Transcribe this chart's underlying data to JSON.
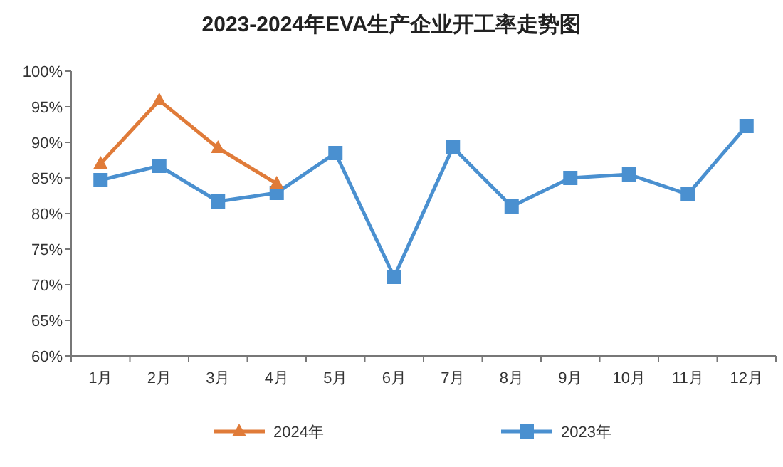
{
  "chart_data": {
    "type": "line",
    "title": "2023-2024年EVA生产企业开工率走势图",
    "categories": [
      "1月",
      "2月",
      "3月",
      "4月",
      "5月",
      "6月",
      "7月",
      "8月",
      "9月",
      "10月",
      "11月",
      "12月"
    ],
    "ylim": [
      60,
      100
    ],
    "yticks": [
      {
        "value": 60,
        "label": "60%"
      },
      {
        "value": 65,
        "label": "65%"
      },
      {
        "value": 70,
        "label": "70%"
      },
      {
        "value": 75,
        "label": "75%"
      },
      {
        "value": 80,
        "label": "80%"
      },
      {
        "value": 85,
        "label": "85%"
      },
      {
        "value": 90,
        "label": "90%"
      },
      {
        "value": 95,
        "label": "95%"
      },
      {
        "value": 100,
        "label": "100%"
      }
    ],
    "grid": false,
    "legend": "bottom",
    "line_style": "solid",
    "series": [
      {
        "name": "2024年",
        "color": "#e07b39",
        "marker": "triangle",
        "values": [
          87,
          95.9,
          89.2,
          84.2,
          null,
          null,
          null,
          null,
          null,
          null,
          null,
          null
        ]
      },
      {
        "name": "2023年",
        "color": "#4a90d0",
        "marker": "square",
        "values": [
          84.7,
          86.7,
          81.7,
          82.9,
          88.5,
          71.1,
          89.3,
          81,
          85,
          85.5,
          82.7,
          92.3
        ]
      }
    ]
  }
}
